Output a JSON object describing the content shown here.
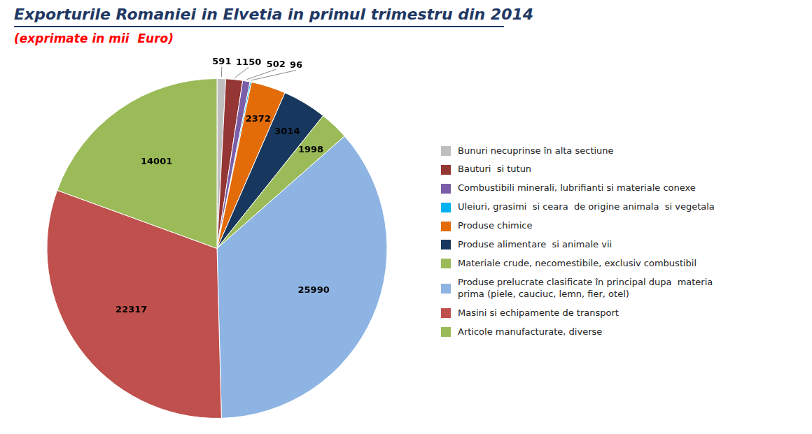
{
  "chart_data": {
    "type": "pie",
    "title": "Exporturile Romaniei in Elvetia in primul trimestru din 2014",
    "subtitle": "(exprimate in mii  Euro)",
    "categories": [
      "Bunuri necuprinse în alta sectiune",
      "Bauturi  si tutun",
      "Combustibili minerali, lubrifianti si materiale conexe",
      "Uleiuri, grasimi  si ceara  de origine animala  si vegetala",
      "Produse chimice",
      "Produse alimentare  si animale vii",
      "Materiale crude, necomestibile, exclusiv combustibil",
      "Produse prelucrate clasificate în principal dupa  materia\nprima (piele, cauciuc, lemn, fier, otel)",
      "Masini si echipamente de transport",
      "Articole manufacturate, diverse"
    ],
    "values": [
      591,
      1150,
      502,
      96,
      2372,
      3014,
      1998,
      25990,
      22317,
      14001
    ],
    "colors": [
      "#BFBFBF",
      "#943634",
      "#7B5EA7",
      "#00B0F0",
      "#E36C09",
      "#17375E",
      "#9BBB59",
      "#8EB4E3",
      "#C0504D",
      "#9BBB59"
    ],
    "data_labels": true,
    "legend": "right"
  }
}
